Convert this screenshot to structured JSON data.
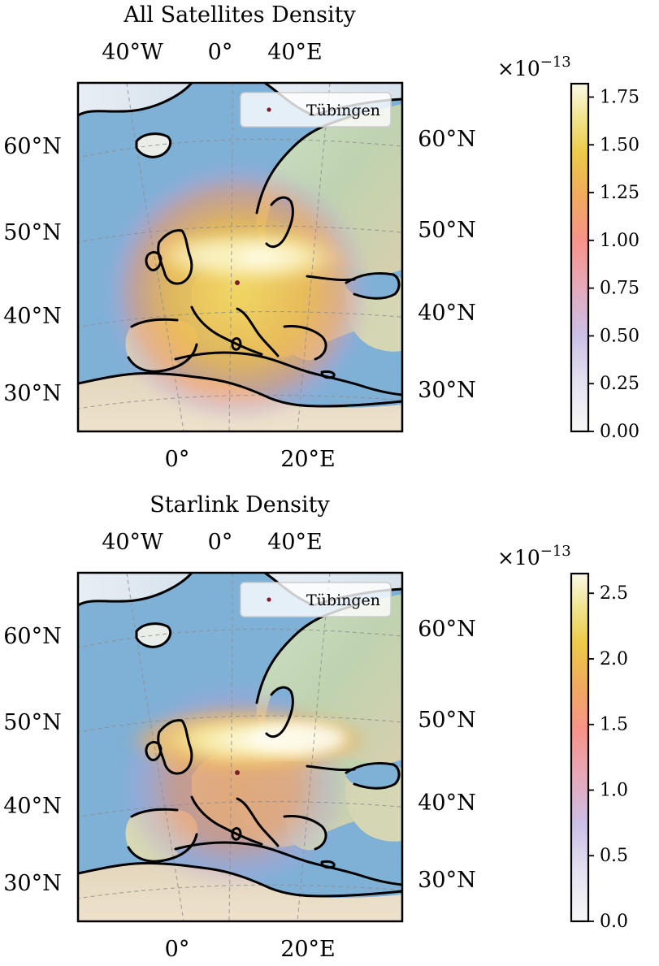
{
  "chart_data": [
    {
      "type": "heatmap",
      "title": "All Satellites Density",
      "map_region": "Europe",
      "top_longitude_ticks": [
        "40°W",
        "0°",
        "40°E"
      ],
      "bottom_longitude_ticks": [
        "0°",
        "20°E"
      ],
      "left_latitude_ticks": [
        "60°N",
        "50°N",
        "40°N",
        "30°N"
      ],
      "right_latitude_ticks": [
        "60°N",
        "50°N",
        "40°N",
        "30°N"
      ],
      "legend": {
        "label": "Tübingen",
        "placement": "top-right",
        "marker_color": "#7a1f2b"
      },
      "marker": {
        "name": "Tübingen",
        "lat": 48.5,
        "lon": 9.1
      },
      "colorbar": {
        "multiplier_base": "×10",
        "multiplier_exponent": "−13",
        "ticks": [
          "0.00",
          "0.25",
          "0.50",
          "0.75",
          "1.00",
          "1.25",
          "1.50",
          "1.75"
        ],
        "tick_values": [
          0.0,
          0.25,
          0.5,
          0.75,
          1.0,
          1.25,
          1.5,
          1.75
        ],
        "range": [
          0.0,
          1.82
        ]
      },
      "grid": true
    },
    {
      "type": "heatmap",
      "title": "Starlink Density",
      "map_region": "Europe",
      "top_longitude_ticks": [
        "40°W",
        "0°",
        "40°E"
      ],
      "bottom_longitude_ticks": [
        "0°",
        "20°E"
      ],
      "left_latitude_ticks": [
        "60°N",
        "50°N",
        "40°N",
        "30°N"
      ],
      "right_latitude_ticks": [
        "60°N",
        "50°N",
        "40°N",
        "30°N"
      ],
      "legend": {
        "label": "Tübingen",
        "placement": "top-right",
        "marker_color": "#7a1f2b"
      },
      "marker": {
        "name": "Tübingen",
        "lat": 48.5,
        "lon": 9.1
      },
      "colorbar": {
        "multiplier_base": "×10",
        "multiplier_exponent": "−13",
        "ticks": [
          "0.0",
          "0.5",
          "1.0",
          "1.5",
          "2.0",
          "2.5"
        ],
        "tick_values": [
          0.0,
          0.5,
          1.0,
          1.5,
          2.0,
          2.5
        ],
        "range": [
          0.0,
          2.65
        ]
      },
      "grid": true
    }
  ]
}
